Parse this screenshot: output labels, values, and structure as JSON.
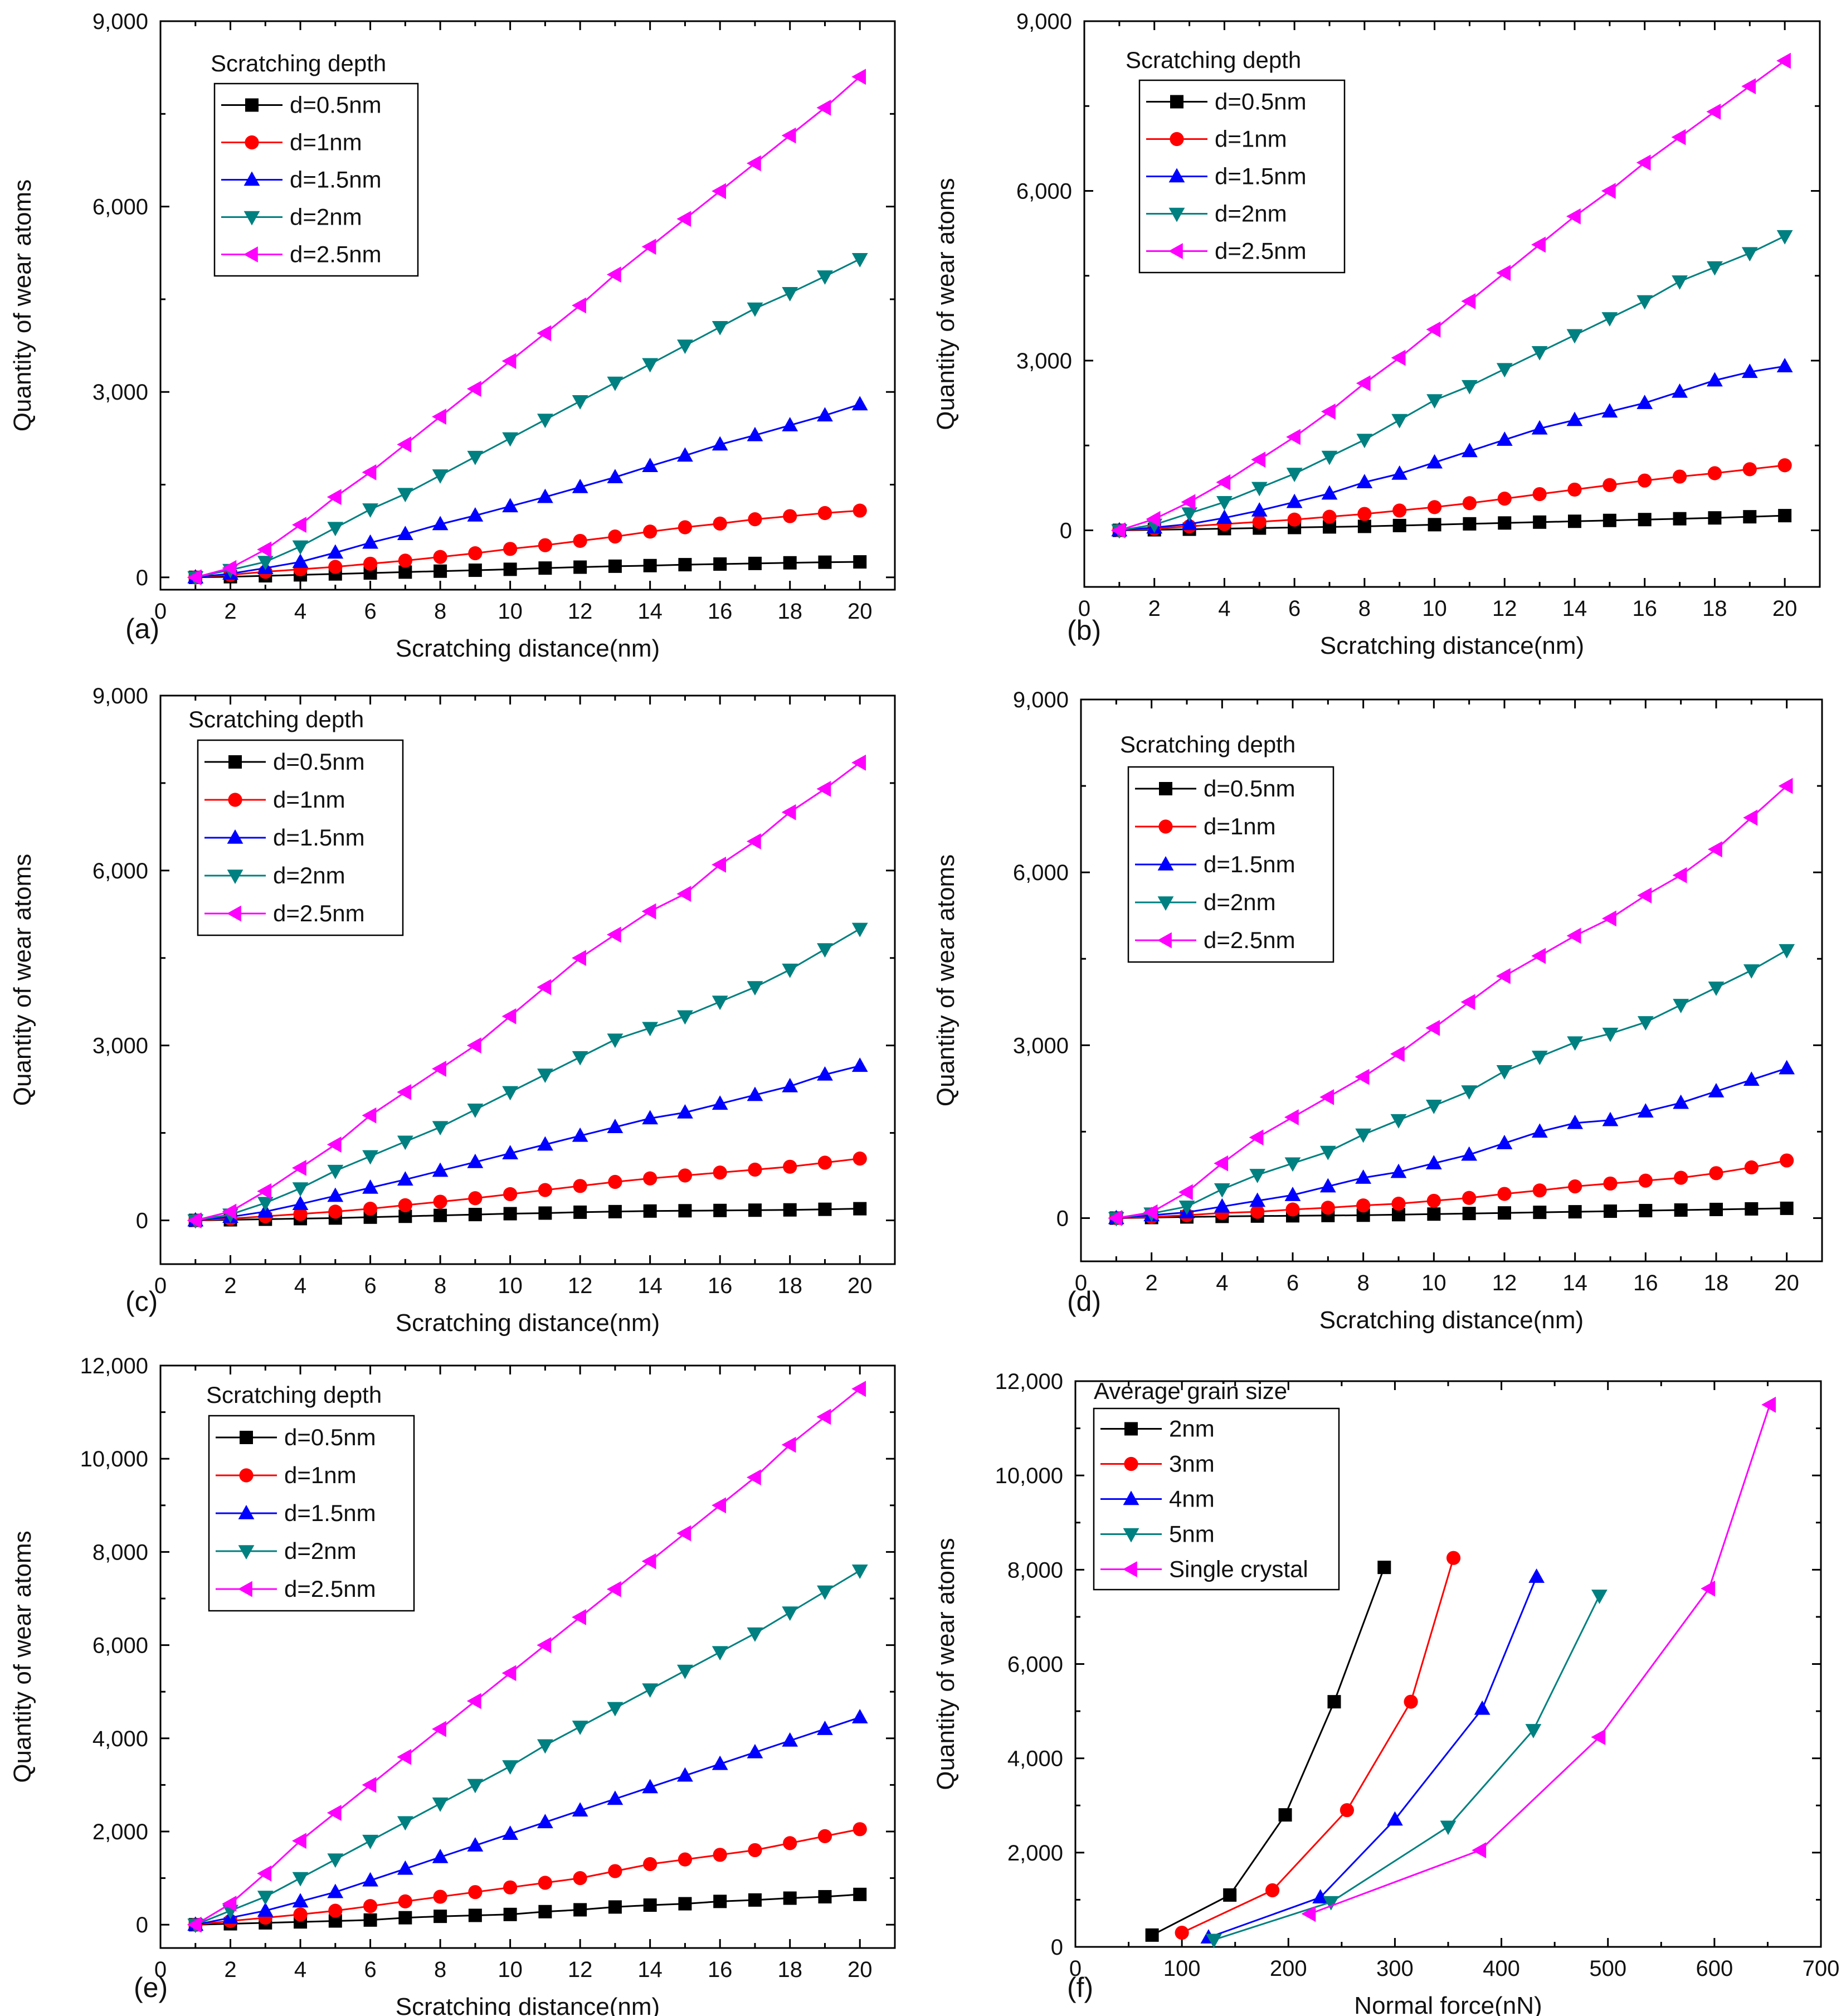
{
  "chart_data": [
    {
      "type": "line",
      "panel_label": "(a)",
      "xlabel": "Scratching distance(nm)",
      "ylabel": "Quantity of wear atoms",
      "xlim": [
        0,
        21
      ],
      "ylim": [
        -200,
        9000
      ],
      "xticks": [
        "0",
        "2",
        "4",
        "6",
        "8",
        "10",
        "12",
        "14",
        "16",
        "18",
        "20"
      ],
      "yticks": [
        "0",
        "3,000",
        "6,000",
        "9,000"
      ],
      "legend_title": "Scratching depth",
      "legend_position": "top-left",
      "x": [
        1,
        2,
        3,
        4,
        5,
        6,
        7,
        8,
        9,
        10,
        11,
        12,
        13,
        14,
        15,
        16,
        17,
        18,
        19,
        20
      ],
      "series": [
        {
          "name": "d=0.5nm",
          "color": "#000000",
          "marker": "square",
          "values": [
            0,
            10,
            25,
            40,
            55,
            70,
            85,
            100,
            115,
            130,
            150,
            165,
            180,
            190,
            205,
            215,
            225,
            235,
            245,
            250
          ]
        },
        {
          "name": "d=1nm",
          "color": "#ff0000",
          "marker": "circle",
          "values": [
            0,
            40,
            90,
            130,
            170,
            220,
            270,
            330,
            390,
            460,
            520,
            590,
            660,
            740,
            810,
            870,
            940,
            990,
            1040,
            1080
          ]
        },
        {
          "name": "d=1.5nm",
          "color": "#0000ff",
          "marker": "triangle-up",
          "values": [
            0,
            60,
            150,
            250,
            400,
            560,
            700,
            860,
            1000,
            1150,
            1300,
            1460,
            1620,
            1800,
            1970,
            2150,
            2300,
            2460,
            2620,
            2800
          ]
        },
        {
          "name": "d=2nm",
          "color": "#008080",
          "marker": "triangle-down",
          "values": [
            0,
            120,
            250,
            500,
            800,
            1100,
            1350,
            1650,
            1950,
            2250,
            2550,
            2850,
            3150,
            3450,
            3750,
            4050,
            4350,
            4600,
            4870,
            5150
          ]
        },
        {
          "name": "d=2.5nm",
          "color": "#ff00ff",
          "marker": "triangle-left",
          "values": [
            0,
            150,
            450,
            850,
            1300,
            1700,
            2150,
            2600,
            3050,
            3500,
            3950,
            4400,
            4900,
            5350,
            5800,
            6250,
            6700,
            7150,
            7600,
            8100
          ]
        }
      ]
    },
    {
      "type": "line",
      "panel_label": "(b)",
      "xlabel": "Scratching distance(nm)",
      "ylabel": "Quantity of wear atoms",
      "xlim": [
        0,
        21
      ],
      "ylim": [
        -1000,
        9000
      ],
      "xticks": [
        "0",
        "2",
        "4",
        "6",
        "8",
        "10",
        "12",
        "14",
        "16",
        "18",
        "20"
      ],
      "yticks": [
        "0",
        "3,000",
        "6,000",
        "9,000"
      ],
      "legend_title": "Scratching depth",
      "legend_position": "top-left",
      "x": [
        1,
        2,
        3,
        4,
        5,
        6,
        7,
        8,
        9,
        10,
        11,
        12,
        13,
        14,
        15,
        16,
        17,
        18,
        19,
        20
      ],
      "series": [
        {
          "name": "d=0.5nm",
          "color": "#000000",
          "marker": "square",
          "values": [
            0,
            10,
            20,
            30,
            40,
            50,
            60,
            70,
            85,
            100,
            115,
            130,
            145,
            160,
            175,
            190,
            205,
            220,
            240,
            260
          ]
        },
        {
          "name": "d=1nm",
          "color": "#ff0000",
          "marker": "circle",
          "values": [
            0,
            30,
            70,
            110,
            150,
            190,
            240,
            290,
            350,
            410,
            480,
            560,
            640,
            720,
            800,
            880,
            950,
            1010,
            1080,
            1150
          ]
        },
        {
          "name": "d=1.5nm",
          "color": "#0000ff",
          "marker": "triangle-up",
          "values": [
            0,
            50,
            110,
            220,
            350,
            500,
            650,
            850,
            1000,
            1200,
            1400,
            1600,
            1800,
            1950,
            2100,
            2250,
            2450,
            2650,
            2800,
            2900
          ]
        },
        {
          "name": "d=2nm",
          "color": "#008080",
          "marker": "triangle-down",
          "values": [
            0,
            100,
            300,
            500,
            750,
            1000,
            1300,
            1600,
            1950,
            2300,
            2550,
            2850,
            3150,
            3450,
            3750,
            4050,
            4400,
            4650,
            4900,
            5200
          ]
        },
        {
          "name": "d=2.5nm",
          "color": "#ff00ff",
          "marker": "triangle-left",
          "values": [
            0,
            200,
            500,
            850,
            1250,
            1650,
            2100,
            2600,
            3050,
            3550,
            4050,
            4550,
            5050,
            5550,
            6000,
            6500,
            6950,
            7400,
            7850,
            8300
          ]
        }
      ]
    },
    {
      "type": "line",
      "panel_label": "(c)",
      "xlabel": "Scratching distance(nm)",
      "ylabel": "Quantity of wear atoms",
      "xlim": [
        0,
        21
      ],
      "ylim": [
        -750,
        9000
      ],
      "xticks": [
        "0",
        "2",
        "4",
        "6",
        "8",
        "10",
        "12",
        "14",
        "16",
        "18",
        "20"
      ],
      "yticks": [
        "0",
        "3,000",
        "6,000",
        "9,000"
      ],
      "legend_title": "Scratching depth",
      "legend_position": "top-left",
      "x": [
        1,
        2,
        3,
        4,
        5,
        6,
        7,
        8,
        9,
        10,
        11,
        12,
        13,
        14,
        15,
        16,
        17,
        18,
        19,
        20
      ],
      "series": [
        {
          "name": "d=0.5nm",
          "color": "#000000",
          "marker": "square",
          "values": [
            0,
            10,
            20,
            30,
            40,
            55,
            70,
            85,
            100,
            115,
            125,
            140,
            150,
            160,
            165,
            170,
            175,
            180,
            190,
            200
          ]
        },
        {
          "name": "d=1nm",
          "color": "#ff0000",
          "marker": "circle",
          "values": [
            0,
            30,
            70,
            110,
            150,
            200,
            260,
            320,
            380,
            450,
            520,
            590,
            660,
            720,
            770,
            820,
            870,
            920,
            990,
            1060
          ]
        },
        {
          "name": "d=1.5nm",
          "color": "#0000ff",
          "marker": "triangle-up",
          "values": [
            0,
            60,
            150,
            280,
            420,
            560,
            700,
            850,
            1000,
            1150,
            1300,
            1450,
            1600,
            1750,
            1850,
            2000,
            2150,
            2300,
            2500,
            2650
          ]
        },
        {
          "name": "d=2nm",
          "color": "#008080",
          "marker": "triangle-down",
          "values": [
            0,
            100,
            300,
            550,
            850,
            1100,
            1350,
            1600,
            1900,
            2200,
            2500,
            2800,
            3100,
            3300,
            3500,
            3750,
            4000,
            4300,
            4650,
            5000
          ]
        },
        {
          "name": "d=2.5nm",
          "color": "#ff00ff",
          "marker": "triangle-left",
          "values": [
            0,
            150,
            500,
            900,
            1300,
            1800,
            2200,
            2600,
            3000,
            3500,
            4000,
            4500,
            4900,
            5300,
            5600,
            6100,
            6500,
            7000,
            7400,
            7850
          ]
        }
      ]
    },
    {
      "type": "line",
      "panel_label": "(d)",
      "xlabel": "Scratching distance(nm)",
      "ylabel": "Quantity of wear atoms",
      "xlim": [
        0,
        21
      ],
      "ylim": [
        -750,
        9000
      ],
      "xticks": [
        "0",
        "2",
        "4",
        "6",
        "8",
        "10",
        "12",
        "14",
        "16",
        "18",
        "20"
      ],
      "yticks": [
        "0",
        "3,000",
        "6,000",
        "9,000"
      ],
      "legend_title": "Scratching depth",
      "legend_position": "top-left",
      "x": [
        1,
        2,
        3,
        4,
        5,
        6,
        7,
        8,
        9,
        10,
        11,
        12,
        13,
        14,
        15,
        16,
        17,
        18,
        19,
        20
      ],
      "series": [
        {
          "name": "d=0.5nm",
          "color": "#000000",
          "marker": "square",
          "values": [
            0,
            10,
            20,
            30,
            35,
            40,
            45,
            50,
            60,
            70,
            80,
            90,
            100,
            110,
            120,
            130,
            140,
            150,
            160,
            170
          ]
        },
        {
          "name": "d=1nm",
          "color": "#ff0000",
          "marker": "circle",
          "values": [
            0,
            20,
            50,
            90,
            110,
            150,
            180,
            220,
            250,
            300,
            350,
            420,
            480,
            550,
            600,
            650,
            700,
            780,
            880,
            1000
          ]
        },
        {
          "name": "d=1.5nm",
          "color": "#0000ff",
          "marker": "triangle-up",
          "values": [
            0,
            50,
            100,
            200,
            300,
            400,
            550,
            700,
            800,
            950,
            1100,
            1300,
            1500,
            1650,
            1700,
            1850,
            2000,
            2200,
            2400,
            2600
          ]
        },
        {
          "name": "d=2nm",
          "color": "#008080",
          "marker": "triangle-down",
          "values": [
            0,
            80,
            200,
            500,
            750,
            950,
            1150,
            1450,
            1700,
            1950,
            2200,
            2550,
            2800,
            3050,
            3200,
            3400,
            3700,
            4000,
            4300,
            4650
          ]
        },
        {
          "name": "d=2.5nm",
          "color": "#ff00ff",
          "marker": "triangle-left",
          "values": [
            0,
            100,
            450,
            950,
            1400,
            1750,
            2100,
            2450,
            2850,
            3300,
            3750,
            4200,
            4550,
            4900,
            5200,
            5600,
            5950,
            6400,
            6950,
            7500
          ]
        }
      ]
    },
    {
      "type": "line",
      "panel_label": "(e)",
      "xlabel": "Scratching distance(nm)",
      "ylabel": "Quantity of wear atoms",
      "xlim": [
        0,
        21
      ],
      "ylim": [
        -500,
        12000
      ],
      "xticks": [
        "0",
        "2",
        "4",
        "6",
        "8",
        "10",
        "12",
        "14",
        "16",
        "18",
        "20"
      ],
      "yticks": [
        "0",
        "2,000",
        "4,000",
        "6,000",
        "8,000",
        "10,000",
        "12,000"
      ],
      "legend_title": "Scratching depth",
      "legend_position": "top-left",
      "x": [
        1,
        2,
        3,
        4,
        5,
        6,
        7,
        8,
        9,
        10,
        11,
        12,
        13,
        14,
        15,
        16,
        17,
        18,
        19,
        20
      ],
      "series": [
        {
          "name": "d=0.5nm",
          "color": "#000000",
          "marker": "square",
          "values": [
            0,
            20,
            40,
            60,
            80,
            100,
            150,
            180,
            200,
            220,
            280,
            320,
            380,
            420,
            450,
            500,
            530,
            570,
            600,
            650
          ]
        },
        {
          "name": "d=1nm",
          "color": "#ff0000",
          "marker": "circle",
          "values": [
            0,
            80,
            150,
            220,
            300,
            400,
            500,
            600,
            700,
            800,
            900,
            1000,
            1150,
            1300,
            1400,
            1500,
            1600,
            1750,
            1900,
            2050
          ]
        },
        {
          "name": "d=1.5nm",
          "color": "#0000ff",
          "marker": "triangle-up",
          "values": [
            0,
            150,
            300,
            500,
            700,
            950,
            1200,
            1450,
            1700,
            1950,
            2200,
            2450,
            2700,
            2950,
            3200,
            3450,
            3700,
            3950,
            4200,
            4450
          ]
        },
        {
          "name": "d=2nm",
          "color": "#008080",
          "marker": "triangle-down",
          "values": [
            0,
            300,
            600,
            1000,
            1400,
            1800,
            2200,
            2600,
            3000,
            3400,
            3850,
            4250,
            4650,
            5050,
            5450,
            5850,
            6250,
            6700,
            7150,
            7600
          ]
        },
        {
          "name": "d=2.5nm",
          "color": "#ff00ff",
          "marker": "triangle-left",
          "values": [
            0,
            450,
            1100,
            1800,
            2400,
            3000,
            3600,
            4200,
            4800,
            5400,
            6000,
            6600,
            7200,
            7800,
            8400,
            9000,
            9600,
            10300,
            10900,
            11500
          ]
        }
      ]
    },
    {
      "type": "line",
      "panel_label": "(f)",
      "xlabel": "Normal force(nN)",
      "ylabel": "Quantity of wear atoms",
      "xlim": [
        0,
        700
      ],
      "ylim": [
        0,
        12000
      ],
      "xticks": [
        "0",
        "100",
        "200",
        "300",
        "400",
        "500",
        "600",
        "700"
      ],
      "yticks": [
        "0",
        "2,000",
        "4,000",
        "6,000",
        "8,000",
        "10,000",
        "12,000"
      ],
      "legend_title": "Average grain size",
      "legend_position": "top-left",
      "series": [
        {
          "name": "2nm",
          "color": "#000000",
          "marker": "square",
          "x": [
            72,
            145,
            197,
            243,
            290
          ],
          "values": [
            250,
            1100,
            2800,
            5200,
            8050
          ]
        },
        {
          "name": "3nm",
          "color": "#ff0000",
          "marker": "circle",
          "x": [
            100,
            185,
            255,
            315,
            355
          ],
          "values": [
            300,
            1200,
            2900,
            5200,
            8250
          ]
        },
        {
          "name": "4nm",
          "color": "#0000ff",
          "marker": "triangle-up",
          "x": [
            125,
            230,
            300,
            382,
            433
          ],
          "values": [
            200,
            1050,
            2700,
            5050,
            7850
          ]
        },
        {
          "name": "5nm",
          "color": "#008080",
          "marker": "triangle-down",
          "x": [
            130,
            240,
            350,
            430,
            492
          ],
          "values": [
            150,
            950,
            2550,
            4600,
            7450
          ]
        },
        {
          "name": "Single crystal",
          "color": "#ff00ff",
          "marker": "triangle-left",
          "x": [
            220,
            380,
            492,
            595,
            652
          ],
          "values": [
            700,
            2050,
            4450,
            7600,
            11500
          ]
        }
      ]
    }
  ]
}
